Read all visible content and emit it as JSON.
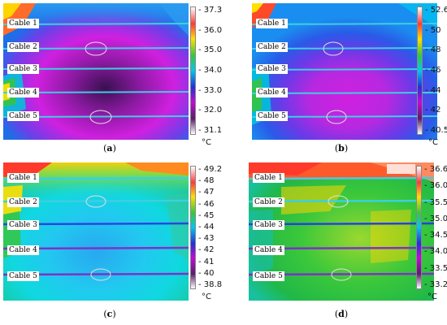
{
  "colors": {
    "ellipse": "#d8d8d8",
    "cable_line": "#3ccfe0"
  },
  "panels": [
    {
      "id": "a",
      "caption_open": "(",
      "caption_letter": "a",
      "caption_close": ")",
      "cables": [
        "Cable 1",
        "Cable 2",
        "Cable 3",
        "Cable 4",
        "Cable 5"
      ],
      "scale_ticks": [
        "37.3",
        "36.0",
        "35.0",
        "34.0",
        "33.0",
        "32.0",
        "31.1"
      ],
      "unit": "°C",
      "palette": [
        "#ffffff",
        "#ff3a3a",
        "#ffe000",
        "#35c83a",
        "#00c8f0",
        "#2230d8",
        "#c40ad8",
        "#5a1c6a",
        "#ffffff"
      ]
    },
    {
      "id": "b",
      "caption_open": "(",
      "caption_letter": "b",
      "caption_close": ")",
      "cables": [
        "Cable 1",
        "Cable 2",
        "Cable 3",
        "Cable 4",
        "Cable 5"
      ],
      "scale_ticks": [
        "52.6",
        "50",
        "48",
        "46",
        "44",
        "42",
        "40.5"
      ],
      "unit": "°C",
      "palette": [
        "#ffffff",
        "#ff3a3a",
        "#ffe000",
        "#35c83a",
        "#00c8f0",
        "#2230d8",
        "#c40ad8",
        "#5a1c6a",
        "#ffffff"
      ]
    },
    {
      "id": "c",
      "caption_open": "(",
      "caption_letter": "c",
      "caption_close": ")",
      "cables": [
        "Cable 1",
        "Cable 2",
        "Cable 3",
        "Cable 4",
        "Cable 5"
      ],
      "scale_ticks": [
        "49.2",
        "48",
        "47",
        "46",
        "45",
        "44",
        "43",
        "42",
        "41",
        "40",
        "38.8"
      ],
      "unit": "°C",
      "palette": [
        "#ffffff",
        "#ff3a3a",
        "#ffe000",
        "#35c83a",
        "#00c8f0",
        "#2230d8",
        "#c40ad8",
        "#5a1c6a",
        "#ffffff"
      ]
    },
    {
      "id": "d",
      "caption_open": "(",
      "caption_letter": "d",
      "caption_close": ")",
      "cables": [
        "Cable 1",
        "Cable 2",
        "Cable 3",
        "Cable 4",
        "Cable 5"
      ],
      "scale_ticks": [
        "36.6",
        "36.0",
        "35.5",
        "35.0",
        "34.5",
        "34.0",
        "33.5",
        "33.2"
      ],
      "unit": "°C",
      "palette": [
        "#ffffff",
        "#ff3a3a",
        "#ffe000",
        "#35c83a",
        "#00c8f0",
        "#2230d8",
        "#c40ad8",
        "#5a1c6a",
        "#ffffff"
      ]
    }
  ]
}
